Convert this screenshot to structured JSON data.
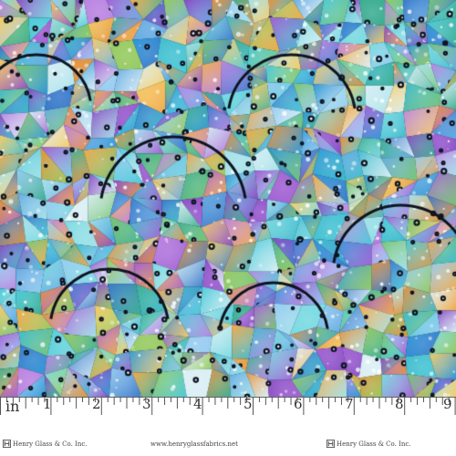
{
  "fabric": {
    "palette": [
      "#2fb5c9",
      "#3fc6d6",
      "#6fd7df",
      "#9fe0e8",
      "#1f8fd4",
      "#2a6fc7",
      "#5aa5e0",
      "#8ec8ef",
      "#7f3fc0",
      "#9a55d0",
      "#b57be0",
      "#e08a2e",
      "#f0a33c",
      "#f4c85a",
      "#8dc654",
      "#6cbf6a",
      "#d7eef4",
      "#2ea88a"
    ],
    "lead_color": "#0d1420",
    "highlight_color": "#ffffff"
  },
  "ruler": {
    "unit_label": "in",
    "numbers": [
      "1",
      "2",
      "3",
      "4",
      "5",
      "6",
      "7",
      "8",
      "9"
    ]
  },
  "footer": {
    "brand_left": "Henry Glass & Co. Inc.",
    "website": "www.henryglassfabrics.net",
    "brand_right": "Henry Glass & Co. Inc."
  }
}
